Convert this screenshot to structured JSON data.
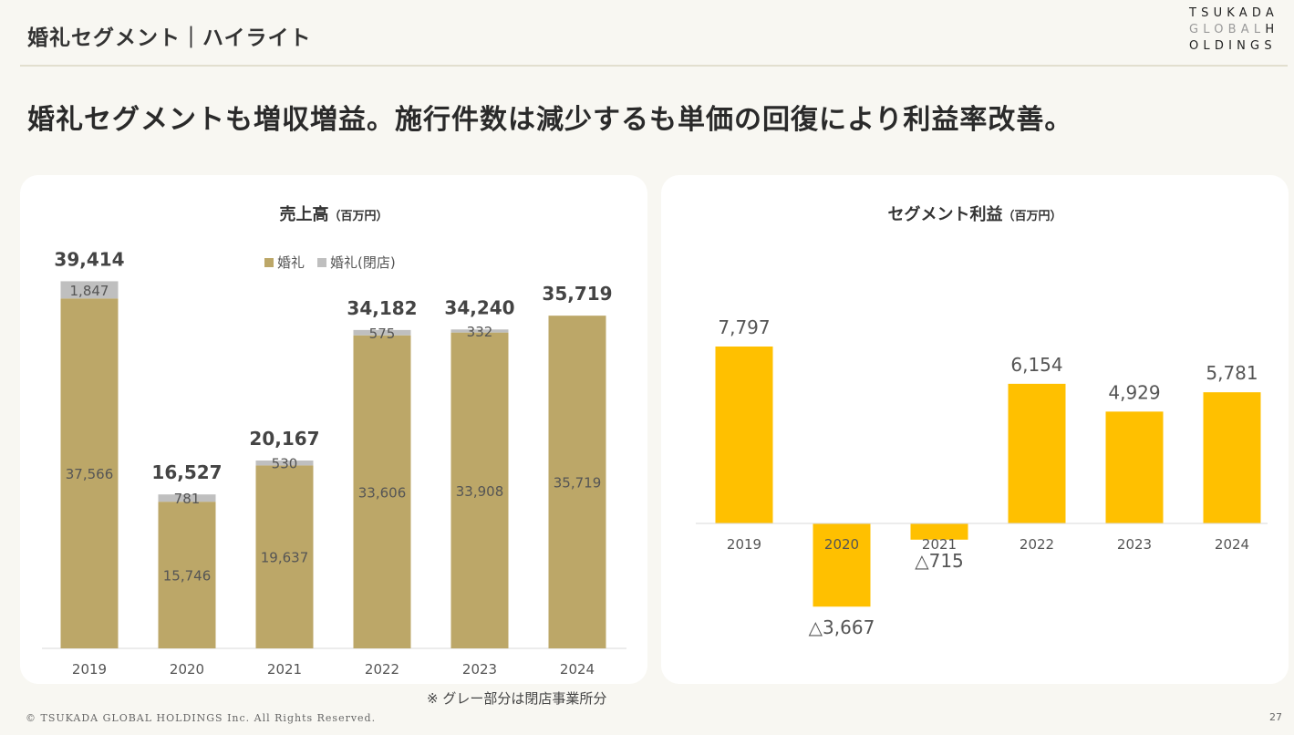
{
  "header": {
    "title": "婚礼セグメント｜ハイライト"
  },
  "logo": {
    "line1": "TSUKADA",
    "line2_gray": "GLOBAL",
    "line2_dark": "H",
    "line3": "OLDINGS"
  },
  "headline": "婚礼セグメントも増収増益。施行件数は減少するも単価の回復により利益率改善。",
  "chart_data": [
    {
      "type": "bar",
      "stacked": true,
      "title": "売上高",
      "title_unit": "（百万円）",
      "categories": [
        "2019",
        "2020",
        "2021",
        "2022",
        "2023",
        "2024"
      ],
      "series": [
        {
          "name": "婚礼",
          "values": [
            37566,
            15746,
            19637,
            33606,
            33908,
            35719
          ],
          "color": "#bca768"
        },
        {
          "name": "婚礼(閉店)",
          "values": [
            1847,
            781,
            530,
            575,
            332,
            null
          ],
          "color": "#bfbfbf"
        }
      ],
      "totals": [
        39414,
        16527,
        20167,
        34182,
        34240,
        35719
      ],
      "segment_labels": [
        [
          "37,566",
          "15,746",
          "19,637",
          "33,606",
          "33,908",
          "35,719"
        ],
        [
          "1,847",
          "781",
          "530",
          "575",
          "332",
          ""
        ]
      ],
      "total_labels": [
        "39,414",
        "16,527",
        "20,167",
        "34,182",
        "34,240",
        "35,719"
      ],
      "legend": "top",
      "ylim": [
        0,
        42000
      ]
    },
    {
      "type": "bar",
      "title": "セグメント利益",
      "title_unit": "（百万円）",
      "categories": [
        "2019",
        "2020",
        "2021",
        "2022",
        "2023",
        "2024"
      ],
      "values": [
        7797,
        -3667,
        -715,
        6154,
        4929,
        5781
      ],
      "value_labels": [
        "7,797",
        "△3,667",
        "△715",
        "6,154",
        "4,929",
        "5,781"
      ],
      "color": "#ffc000",
      "ylim": [
        -4000,
        8000
      ]
    }
  ],
  "note": "※ グレー部分は閉店事業所分",
  "footer": {
    "copyright": "© TSUKADA GLOBAL HOLDINGS Inc. All Rights Reserved.",
    "page": "27"
  }
}
